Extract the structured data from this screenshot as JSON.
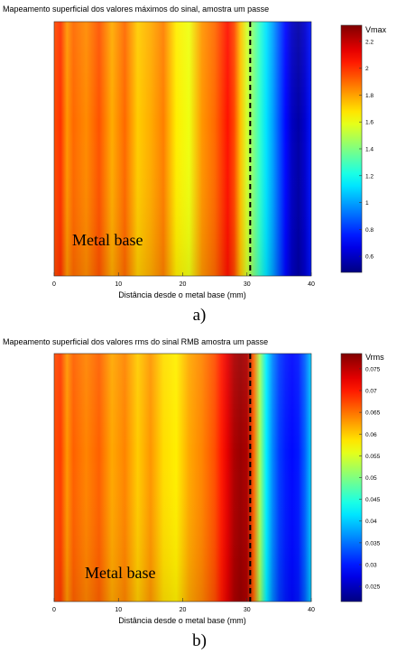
{
  "chart_data": [
    {
      "type": "heatmap",
      "title": "Mapeamento superficial dos valores máximos do sinal, amostra um passe",
      "xlabel": "Distância desde o metal base (mm)",
      "ylabel": "",
      "xlim": [
        0,
        40
      ],
      "x_ticks": [
        "0",
        "10",
        "20",
        "30",
        "40"
      ],
      "colorbar_label": "Vmax",
      "colorbar_range": [
        0.48,
        2.32
      ],
      "colorbar_ticks": [
        "2.2",
        "2",
        "1.8",
        "1.6",
        "1.4",
        "1.2",
        "1",
        "0.8",
        "0.6"
      ],
      "profile": {
        "x": [
          0,
          1,
          2,
          3,
          5,
          7,
          9,
          11,
          13,
          15,
          17,
          19,
          21,
          23,
          25,
          27,
          28,
          29,
          30,
          31,
          32,
          33,
          34,
          35,
          36,
          37,
          38,
          39,
          40
        ],
        "values": [
          1.95,
          2.0,
          1.82,
          1.9,
          1.84,
          1.94,
          1.78,
          1.9,
          1.72,
          1.78,
          1.86,
          1.66,
          1.6,
          1.82,
          1.9,
          2.06,
          1.96,
          1.74,
          1.55,
          1.4,
          1.26,
          1.12,
          1.0,
          0.86,
          0.72,
          0.6,
          0.55,
          0.62,
          0.75
        ]
      },
      "marker_x": 30.5,
      "annotation": "Metal base",
      "caption": "a)",
      "colors": {
        "low": "#00008f",
        "mid": "#7fff7f",
        "high": "#800000"
      }
    },
    {
      "type": "heatmap",
      "title": "Mapeamento superficial dos valores rms do sinal RMB amostra um passe",
      "xlabel": "Distância desde o metal base (mm)",
      "ylabel": "",
      "xlim": [
        0,
        40
      ],
      "x_ticks": [
        "0",
        "10",
        "20",
        "30",
        "40"
      ],
      "colorbar_label": "Vrms",
      "colorbar_range": [
        0.0215,
        0.0785
      ],
      "colorbar_ticks": [
        "0.075",
        "0.07",
        "0.065",
        "0.06",
        "0.055",
        "0.05",
        "0.045",
        "0.04",
        "0.035",
        "0.03",
        "0.025"
      ],
      "profile": {
        "x": [
          0,
          1,
          2,
          3,
          5,
          7,
          9,
          11,
          13,
          15,
          17,
          19,
          21,
          23,
          25,
          26,
          27,
          28,
          29,
          30,
          31,
          32,
          33,
          34,
          35,
          36,
          37,
          38,
          39,
          40
        ],
        "values": [
          0.067,
          0.068,
          0.063,
          0.066,
          0.064,
          0.066,
          0.062,
          0.064,
          0.06,
          0.063,
          0.059,
          0.058,
          0.062,
          0.064,
          0.067,
          0.07,
          0.073,
          0.076,
          0.077,
          0.076,
          0.066,
          0.052,
          0.042,
          0.036,
          0.032,
          0.03,
          0.029,
          0.03,
          0.034,
          0.04
        ]
      },
      "marker_x": 30.5,
      "annotation": "Metal base",
      "caption": "b)",
      "colors": {
        "low": "#00008f",
        "mid": "#7fff7f",
        "high": "#800000"
      }
    }
  ]
}
